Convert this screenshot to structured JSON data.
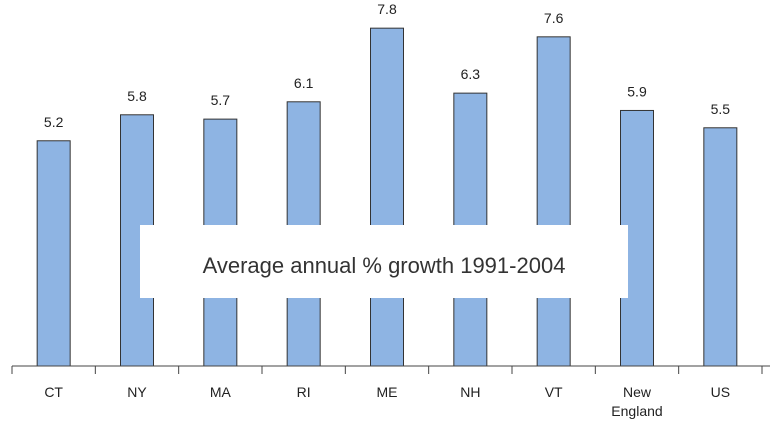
{
  "chart_data": {
    "type": "bar",
    "categories": [
      "CT",
      "NY",
      "MA",
      "RI",
      "ME",
      "NH",
      "VT",
      "New England",
      "US"
    ],
    "values": [
      5.2,
      5.8,
      5.7,
      6.1,
      7.8,
      6.3,
      7.6,
      5.9,
      5.5
    ],
    "color": "#8eb4e3",
    "ylim": [
      0,
      8
    ],
    "annotation": "Average annual % growth 1991-2004"
  }
}
